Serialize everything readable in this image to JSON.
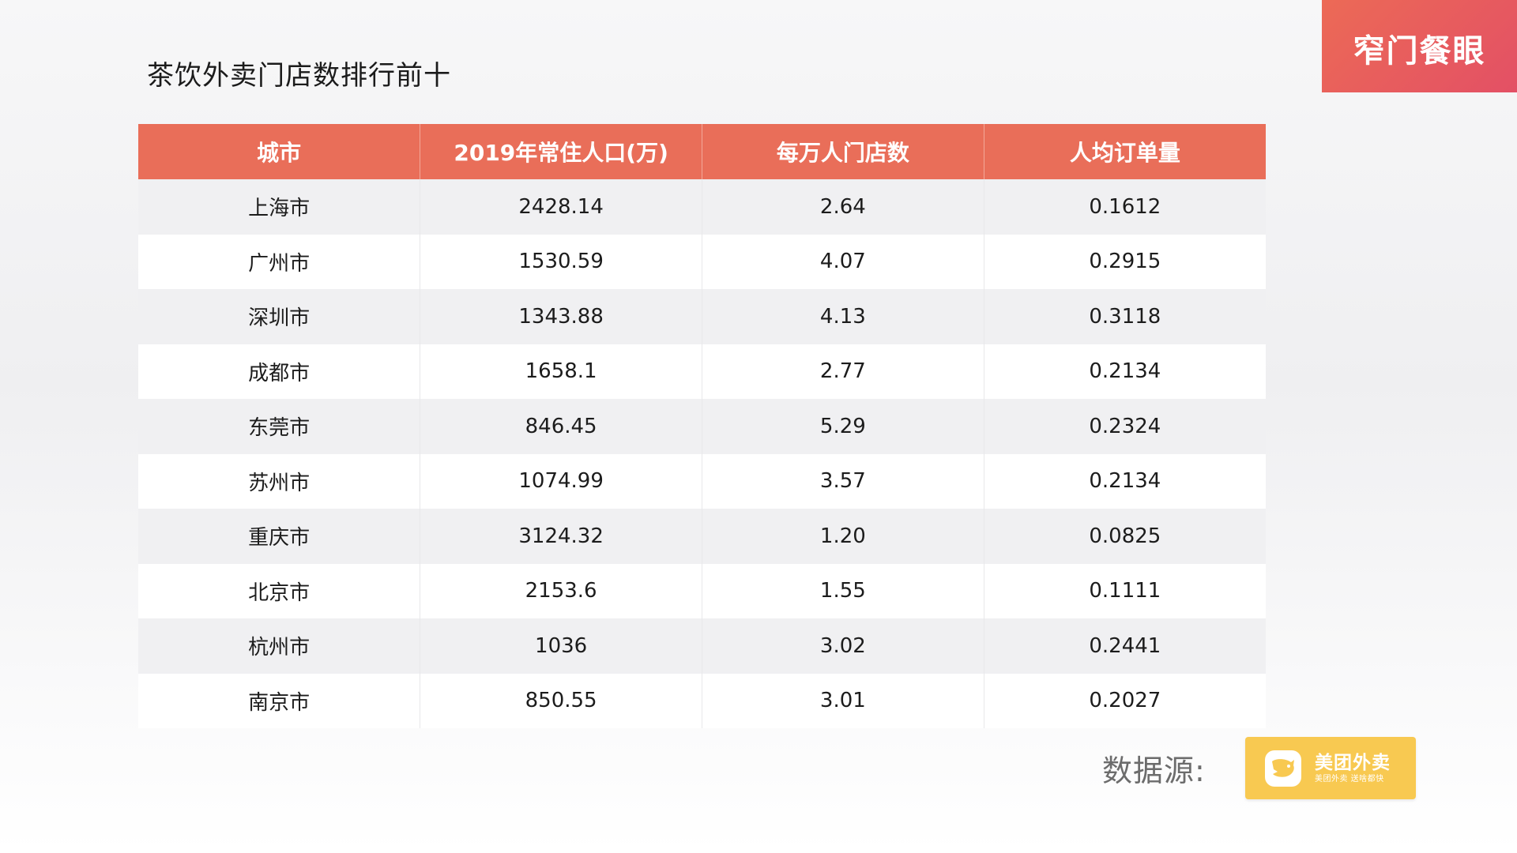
{
  "title": "茶饮外卖门店数排行前十",
  "brand": "窄门餐眼",
  "table": {
    "headers": [
      "城市",
      "2019年常住人口(万)",
      "每万人门店数",
      "人均订单量"
    ],
    "rows": [
      [
        "上海市",
        "2428.14",
        "2.64",
        "0.1612"
      ],
      [
        "广州市",
        "1530.59",
        "4.07",
        "0.2915"
      ],
      [
        "深圳市",
        "1343.88",
        "4.13",
        "0.3118"
      ],
      [
        "成都市",
        "1658.1",
        "2.77",
        "0.2134"
      ],
      [
        "东莞市",
        "846.45",
        "5.29",
        "0.2324"
      ],
      [
        "苏州市",
        "1074.99",
        "3.57",
        "0.2134"
      ],
      [
        "重庆市",
        "3124.32",
        "1.20",
        "0.0825"
      ],
      [
        "北京市",
        "2153.6",
        "1.55",
        "0.1111"
      ],
      [
        "杭州市",
        "1036",
        "3.02",
        "0.2441"
      ],
      [
        "南京市",
        "850.55",
        "3.01",
        "0.2027"
      ]
    ]
  },
  "source": {
    "label": "数据源:",
    "logo_title": "美团外卖",
    "logo_slogan": "美团外卖 送啥都快"
  },
  "colors": {
    "header": "#e96e59",
    "badge": "#e35a5e",
    "logo_bg": "#f8c951"
  }
}
